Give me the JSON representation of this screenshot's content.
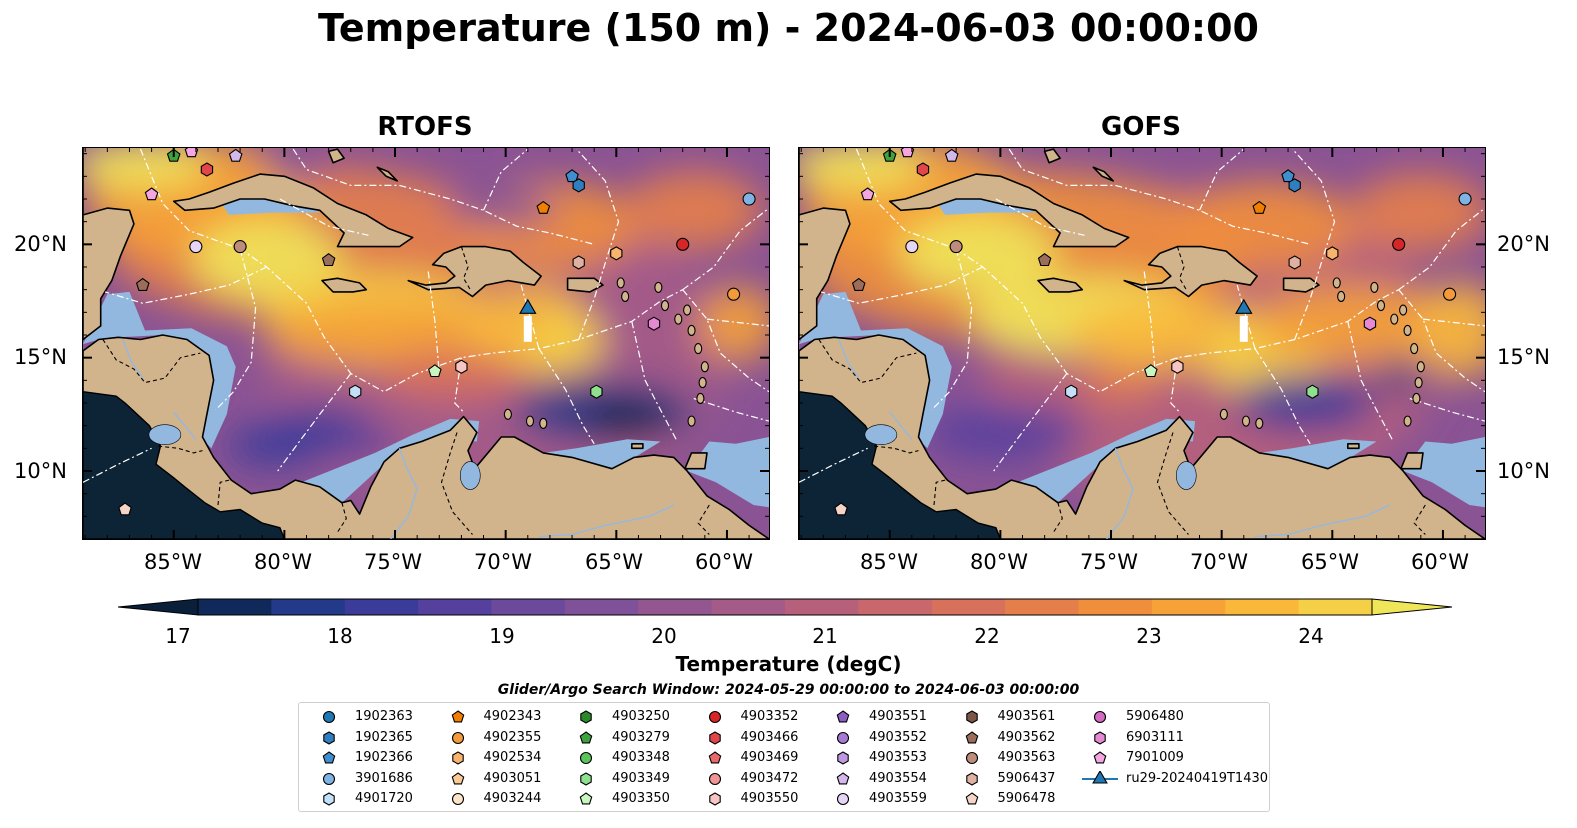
{
  "title": "Temperature (150 m) - 2024-06-03 00:00:00",
  "panels": [
    {
      "title": "RTOFS"
    },
    {
      "title": "GOFS"
    }
  ],
  "axes": {
    "lat_labels": [
      "20°N",
      "15°N",
      "10°N"
    ],
    "lon_labels": [
      "85°W",
      "80°W",
      "75°W",
      "70°W",
      "65°W",
      "60°W"
    ]
  },
  "colorbar": {
    "label": "Temperature (degC)",
    "ticks": [
      "17",
      "18",
      "19",
      "20",
      "21",
      "22",
      "23",
      "24"
    ],
    "min": 16.5,
    "max": 24.5,
    "colors": [
      "#0a1f3a",
      "#0f2a5a",
      "#233a8a",
      "#3b3c9a",
      "#56409e",
      "#6b4a9c",
      "#7f5198",
      "#935691",
      "#a55b87",
      "#b7607b",
      "#c8676c",
      "#d8715c",
      "#e57f4a",
      "#ef8f3c",
      "#f6a237",
      "#f9b83a",
      "#f5cf45",
      "#f0e65a"
    ],
    "extend": "both"
  },
  "search_window": "Glider/Argo Search Window: 2024-05-29 00:00:00 to 2024-06-03 00:00:00",
  "legend": {
    "items": [
      {
        "label": "1902363",
        "color": "#1f77b4",
        "marker": "circle"
      },
      {
        "label": "1902365",
        "color": "#2f7fc0",
        "marker": "hexagon"
      },
      {
        "label": "1902366",
        "color": "#3f8fd0",
        "marker": "pentagon"
      },
      {
        "label": "3901686",
        "color": "#7fb3e3",
        "marker": "circle"
      },
      {
        "label": "4901720",
        "color": "#c4e0f7",
        "marker": "hexagon"
      },
      {
        "label": "4902343",
        "color": "#f07f00",
        "marker": "pentagon"
      },
      {
        "label": "4902355",
        "color": "#f59a3a",
        "marker": "circle"
      },
      {
        "label": "4902534",
        "color": "#f8b46c",
        "marker": "hexagon"
      },
      {
        "label": "4903051",
        "color": "#fbcb96",
        "marker": "pentagon"
      },
      {
        "label": "4903244",
        "color": "#fde3c8",
        "marker": "circle"
      },
      {
        "label": "4903250",
        "color": "#2a8a2a",
        "marker": "hexagon"
      },
      {
        "label": "4903279",
        "color": "#3ea33e",
        "marker": "pentagon"
      },
      {
        "label": "4903348",
        "color": "#5bc35b",
        "marker": "circle"
      },
      {
        "label": "4903349",
        "color": "#8fe08f",
        "marker": "hexagon"
      },
      {
        "label": "4903350",
        "color": "#c8f5c0",
        "marker": "pentagon"
      },
      {
        "label": "4903352",
        "color": "#d62728",
        "marker": "circle"
      },
      {
        "label": "4903466",
        "color": "#e0474a",
        "marker": "hexagon"
      },
      {
        "label": "4903469",
        "color": "#e86a6b",
        "marker": "pentagon"
      },
      {
        "label": "4903472",
        "color": "#f09596",
        "marker": "circle"
      },
      {
        "label": "4903550",
        "color": "#f8c5c5",
        "marker": "hexagon"
      },
      {
        "label": "4903551",
        "color": "#8c5ebf",
        "marker": "pentagon"
      },
      {
        "label": "4903552",
        "color": "#a57ad0",
        "marker": "circle"
      },
      {
        "label": "4903553",
        "color": "#bd98df",
        "marker": "hexagon"
      },
      {
        "label": "4903554",
        "color": "#d3b8ec",
        "marker": "pentagon"
      },
      {
        "label": "4903559",
        "color": "#e6d5f7",
        "marker": "circle"
      },
      {
        "label": "4903561",
        "color": "#7b5545",
        "marker": "hexagon"
      },
      {
        "label": "4903562",
        "color": "#9a6e5b",
        "marker": "pentagon"
      },
      {
        "label": "4903563",
        "color": "#bd8c7a",
        "marker": "circle"
      },
      {
        "label": "5906437",
        "color": "#dfb1a2",
        "marker": "hexagon"
      },
      {
        "label": "5906478",
        "color": "#f6d5c9",
        "marker": "pentagon"
      },
      {
        "label": "5906480",
        "color": "#d36bc0",
        "marker": "circle"
      },
      {
        "label": "6903111",
        "color": "#e589d2",
        "marker": "hexagon"
      },
      {
        "label": "7901009",
        "color": "#f3a6e2",
        "marker": "pentagon"
      },
      {
        "label": "ru29-20240419T1430",
        "color": "#1f77b4",
        "marker": "triangle-line"
      }
    ]
  },
  "glider": {
    "name": "ru29-20240419T1430",
    "lon": -69,
    "lat": 17.2
  },
  "floats": [
    {
      "id": "4903279",
      "lon": -85,
      "lat": 23.9
    },
    {
      "id": "7901009",
      "lon": -84.2,
      "lat": 24.1
    },
    {
      "id": "4903466",
      "lon": -83.5,
      "lat": 23.3
    },
    {
      "id": "4903554",
      "lon": -82.2,
      "lat": 23.9
    },
    {
      "id": "7901009",
      "lon": -86,
      "lat": 22.2
    },
    {
      "id": "4903559",
      "lon": -84,
      "lat": 19.9
    },
    {
      "id": "4903563",
      "lon": -82,
      "lat": 19.9
    },
    {
      "id": "4903562",
      "lon": -78,
      "lat": 19.3
    },
    {
      "id": "4903562",
      "lon": -86.4,
      "lat": 18.2
    },
    {
      "id": "4902343",
      "lon": -68.3,
      "lat": 21.6
    },
    {
      "id": "1902366",
      "lon": -67,
      "lat": 23
    },
    {
      "id": "1902365",
      "lon": -66.7,
      "lat": 22.6
    },
    {
      "id": "3901686",
      "lon": -59,
      "lat": 22
    },
    {
      "id": "4903352",
      "lon": -62,
      "lat": 20
    },
    {
      "id": "5906437",
      "lon": -66.7,
      "lat": 19.2
    },
    {
      "id": "4902534",
      "lon": -65,
      "lat": 19.6
    },
    {
      "id": "4902355",
      "lon": -59.7,
      "lat": 17.8
    },
    {
      "id": "6903111",
      "lon": -63.3,
      "lat": 16.5
    },
    {
      "id": "4903350",
      "lon": -73.2,
      "lat": 14.4
    },
    {
      "id": "4903550",
      "lon": -72,
      "lat": 14.6
    },
    {
      "id": "4901720",
      "lon": -76.8,
      "lat": 13.5
    },
    {
      "id": "4903349",
      "lon": -65.9,
      "lat": 13.5
    },
    {
      "id": "5906478",
      "lon": -87.2,
      "lat": 8.3
    }
  ]
}
